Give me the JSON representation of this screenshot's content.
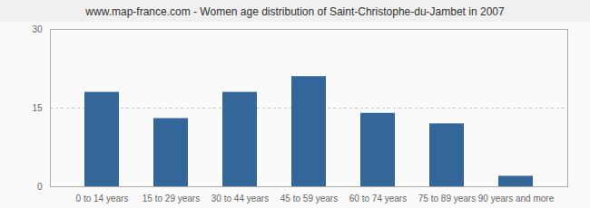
{
  "chart_data": {
    "type": "bar",
    "title": "www.map-france.com - Women age distribution of Saint-Christophe-du-Jambet in 2007",
    "categories": [
      "0 to 14 years",
      "15 to 29 years",
      "30 to 44 years",
      "45 to 59 years",
      "60 to 74 years",
      "75 to 89 years",
      "90 years and more"
    ],
    "values": [
      18,
      13,
      18,
      21,
      14,
      12,
      2
    ],
    "color": "#336699",
    "ylim": [
      0,
      30
    ],
    "yticks": [
      0,
      15,
      30
    ],
    "grid": true
  }
}
